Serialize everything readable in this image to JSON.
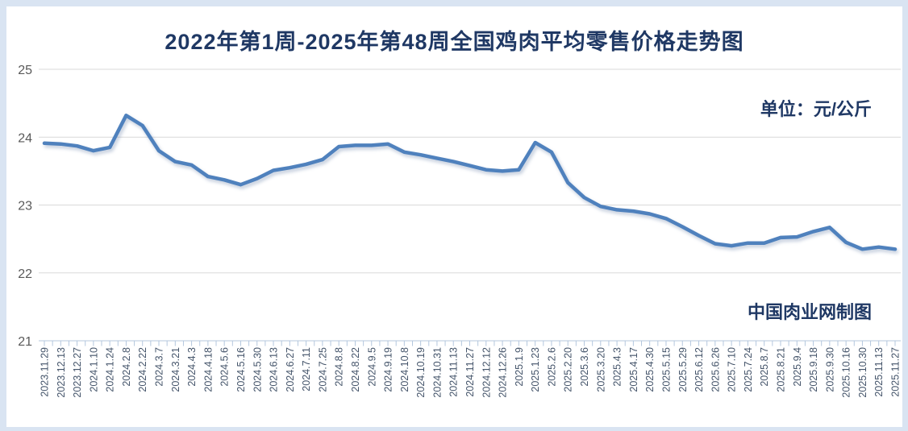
{
  "page": {
    "background_color": "#d9e4f2",
    "panel_color": "#ffffff"
  },
  "header": {
    "title": "2022年第1周-2025年第48周全国鸡肉平均零售价格走势图"
  },
  "annotations": {
    "unit_label": "单位：元/公斤",
    "credit": "中国肉业网制图"
  },
  "chart_data": {
    "type": "line",
    "title": "2022年第1周-2025年第48周全国鸡肉平均零售价格走势图",
    "ylabel": "元/公斤",
    "xlabel": "",
    "ylim": [
      21,
      25
    ],
    "yticks": [
      21,
      22,
      23,
      24,
      25
    ],
    "grid": true,
    "legend": "none",
    "categories": [
      "2023.11.29",
      "2023.12.13",
      "2023.12.27",
      "2024.1.10",
      "2024.1.24",
      "2024.2.8",
      "2024.2.22",
      "2024.3.7",
      "2024.3.21",
      "2024.4.3",
      "2024.4.18",
      "2024.5.6",
      "2024.5.16",
      "2024.5.30",
      "2024.6.13",
      "2024.6.27",
      "2024.7.11",
      "2024.7.25",
      "2024.8.8",
      "2024.8.22",
      "2024.9.5",
      "2024.9.19",
      "2024.10.8",
      "2024.10.19",
      "2024.10.31",
      "2024.11.13",
      "2024.11.27",
      "2024.12.12",
      "2024.12.26",
      "2025.1.9",
      "2025.1.23",
      "2025.2.6",
      "2025.2.20",
      "2025.3.6",
      "2025.3.20",
      "2025.4.3",
      "2025.4.17",
      "2025.4.30",
      "2025.5.15",
      "2025.5.29",
      "2025.6.12",
      "2025.6.26",
      "2025.7.10",
      "2025.7.24",
      "2025.8.7",
      "2025.8.21",
      "2025.9.4",
      "2025.9.18",
      "2025.9.30",
      "2025.10.16",
      "2025.10.30",
      "2025.11.13",
      "2025.11.27"
    ],
    "values": [
      23.91,
      23.9,
      23.87,
      23.8,
      23.85,
      24.32,
      24.17,
      23.8,
      23.64,
      23.59,
      23.42,
      23.37,
      23.3,
      23.39,
      23.51,
      23.55,
      23.6,
      23.67,
      23.86,
      23.88,
      23.88,
      23.9,
      23.78,
      23.74,
      23.69,
      23.64,
      23.58,
      23.52,
      23.5,
      23.52,
      23.92,
      23.78,
      23.33,
      23.11,
      22.98,
      22.93,
      22.91,
      22.87,
      22.8,
      22.68,
      22.55,
      22.43,
      22.4,
      22.44,
      22.44,
      22.52,
      22.53,
      22.61,
      22.67,
      22.45,
      22.35,
      22.38,
      22.35
    ],
    "line_color": "#4F81BD",
    "gridline_color": "#D9D9D9",
    "axis_line_color": "#B4C7DE",
    "ytick_text_color": "#595959",
    "xtick_text_color": "#44546A",
    "title_color": "#1F3864"
  }
}
